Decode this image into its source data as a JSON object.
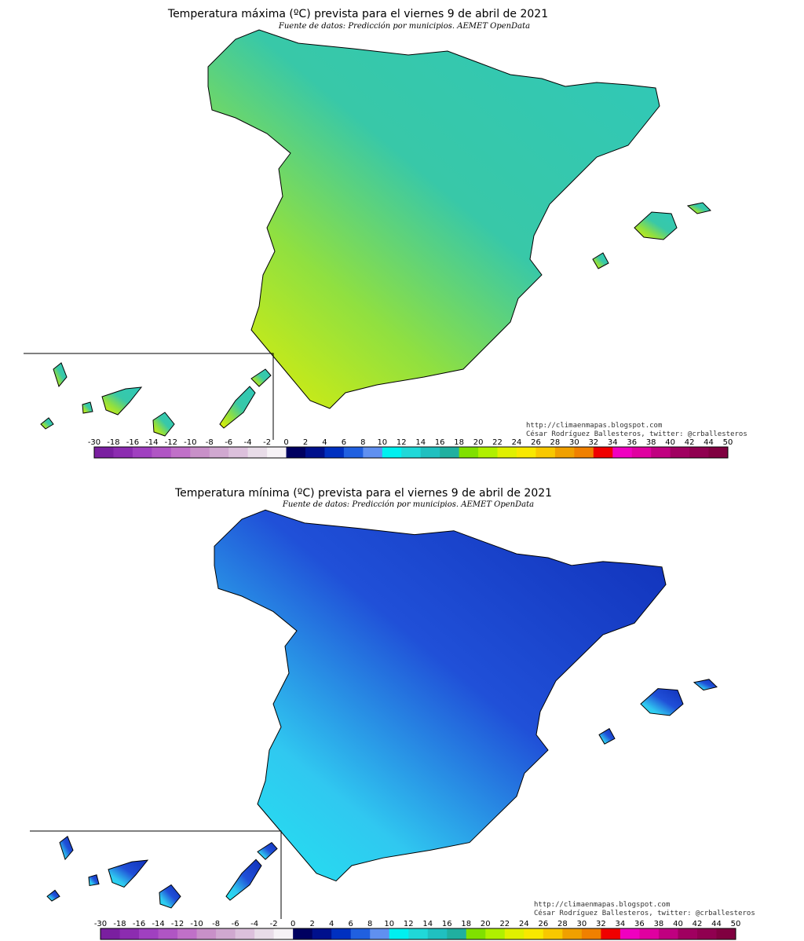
{
  "maps": [
    {
      "title": "Temperatura máxima (ºC) prevista para el viernes 9 de abril de 2021",
      "source": "Fuente de datos: Predicción por municipios. AEMET OpenData",
      "credit_url": "http://climaenmapas.blogspot.com",
      "credit_author": "César Rodríguez Ballesteros, twitter: @crballesteros"
    },
    {
      "title": "Temperatura mínima (ºC) prevista para el viernes 9 de abril de 2021",
      "source": "Fuente de datos: Predicción por municipios. AEMET OpenData",
      "credit_url": "http://climaenmapas.blogspot.com",
      "credit_author": "César Rodríguez Ballesteros, twitter: @crballesteros"
    }
  ],
  "colorbar": {
    "ticks": [
      -30,
      -18,
      -16,
      -14,
      -12,
      -10,
      -8,
      -6,
      -4,
      -2,
      0,
      2,
      4,
      6,
      8,
      10,
      12,
      14,
      16,
      18,
      20,
      22,
      24,
      26,
      28,
      30,
      32,
      34,
      36,
      38,
      40,
      42,
      44,
      50
    ],
    "colors": [
      "#7a1fa0",
      "#8c2cb0",
      "#a040c0",
      "#b055c4",
      "#c070c8",
      "#c890c8",
      "#d0a8d0",
      "#dcc0dc",
      "#e8dce8",
      "#f6f2f6",
      "#000060",
      "#00108c",
      "#0030c0",
      "#2060e0",
      "#6090f0",
      "#00f0f0",
      "#20d8d8",
      "#20c0c0",
      "#20b0a0",
      "#80e000",
      "#b0f000",
      "#e0f000",
      "#f8e800",
      "#f8c800",
      "#f0a000",
      "#f08000",
      "#f00000",
      "#f000c0",
      "#e000a0",
      "#c00080",
      "#a00060",
      "#900050",
      "#800040"
    ]
  }
}
